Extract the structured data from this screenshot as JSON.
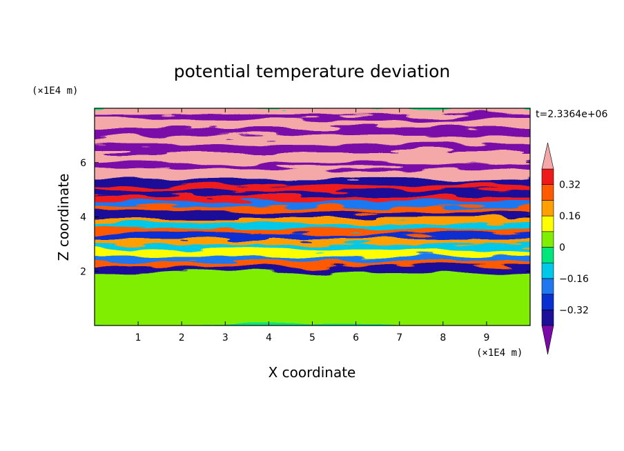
{
  "chart_data": {
    "type": "heatmap",
    "title": "potential temperature deviation",
    "xlabel": "X coordinate",
    "ylabel": "Z coordinate",
    "x_unit": "(×1E4 m)",
    "y_unit": "(×1E4 m)",
    "time_label": "t=2.3364e+06",
    "xlim": [
      0,
      10
    ],
    "ylim": [
      0,
      8
    ],
    "x_ticks": [
      1,
      2,
      3,
      4,
      5,
      6,
      7,
      8,
      9
    ],
    "y_ticks": [
      2,
      4,
      6
    ],
    "colorbar": {
      "labels": [
        "0.32",
        "0.16",
        "0",
        "-0.16",
        "-0.32"
      ],
      "label_values": [
        0.32,
        0.16,
        0,
        -0.16,
        -0.32
      ],
      "levels": [
        -0.4,
        -0.32,
        -0.24,
        -0.16,
        -0.08,
        0,
        0.08,
        0.16,
        0.24,
        0.32,
        0.4
      ],
      "colors": [
        "#7a0aa8",
        "#1c0f99",
        "#0a2fd0",
        "#1f78f0",
        "#00c8e8",
        "#00e67a",
        "#80ee00",
        "#ffff00",
        "#ffa000",
        "#ff5a00",
        "#ee1a1a",
        "#f5a8a8"
      ]
    },
    "bands": [
      {
        "z0": 0.0,
        "z1": 2.0,
        "value": 0.04
      },
      {
        "z0": 2.0,
        "z1": 2.2,
        "value": -0.36
      },
      {
        "z0": 2.2,
        "z1": 2.4,
        "value": 0.26
      },
      {
        "z0": 2.4,
        "z1": 2.6,
        "value": -0.2
      },
      {
        "z0": 2.6,
        "z1": 2.8,
        "value": 0.1
      },
      {
        "z0": 2.8,
        "z1": 3.0,
        "value": -0.12
      },
      {
        "z0": 3.0,
        "z1": 3.2,
        "value": 0.2
      },
      {
        "z0": 3.2,
        "z1": 3.4,
        "value": -0.3
      },
      {
        "z0": 3.4,
        "z1": 3.6,
        "value": 0.3
      },
      {
        "z0": 3.6,
        "z1": 3.8,
        "value": -0.1
      },
      {
        "z0": 3.8,
        "z1": 4.0,
        "value": 0.16
      },
      {
        "z0": 4.0,
        "z1": 4.2,
        "value": -0.34
      },
      {
        "z0": 4.2,
        "z1": 4.4,
        "value": 0.28
      },
      {
        "z0": 4.4,
        "z1": 4.6,
        "value": -0.22
      },
      {
        "z0": 4.6,
        "z1": 4.8,
        "value": 0.34
      },
      {
        "z0": 4.8,
        "z1": 5.0,
        "value": -0.36
      },
      {
        "z0": 5.0,
        "z1": 5.2,
        "value": 0.36
      },
      {
        "z0": 5.2,
        "z1": 5.4,
        "value": -0.38
      },
      {
        "z0": 5.4,
        "z1": 5.8,
        "value": 0.42
      },
      {
        "z0": 5.8,
        "z1": 6.0,
        "value": -0.42
      },
      {
        "z0": 6.0,
        "z1": 6.4,
        "value": 0.44
      },
      {
        "z0": 6.4,
        "z1": 6.7,
        "value": -0.44
      },
      {
        "z0": 6.7,
        "z1": 7.0,
        "value": 0.44
      },
      {
        "z0": 7.0,
        "z1": 7.3,
        "value": -0.44
      },
      {
        "z0": 7.3,
        "z1": 7.6,
        "value": 0.44
      },
      {
        "z0": 7.6,
        "z1": 7.8,
        "value": -0.44
      },
      {
        "z0": 7.8,
        "z1": 8.0,
        "value": 0.44
      }
    ]
  }
}
